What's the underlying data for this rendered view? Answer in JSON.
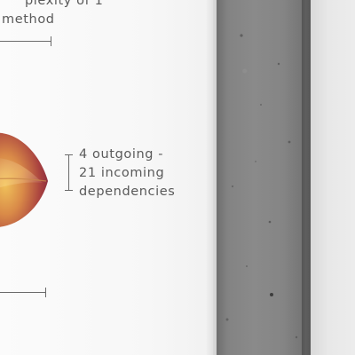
{
  "top_annotation": {
    "line1": "plexity of 1",
    "line2": "method"
  },
  "side_annotation": {
    "line1": "4 outgoing -",
    "line2": "21 incoming",
    "line3": "dependencies"
  },
  "colors": {
    "poster": "#f8f8f8",
    "concrete": "#858585",
    "wall": "#e6e6e6",
    "leaf_dark": "#7a2440",
    "leaf_light": "#e2a54e",
    "text": "#5a5a5a"
  }
}
